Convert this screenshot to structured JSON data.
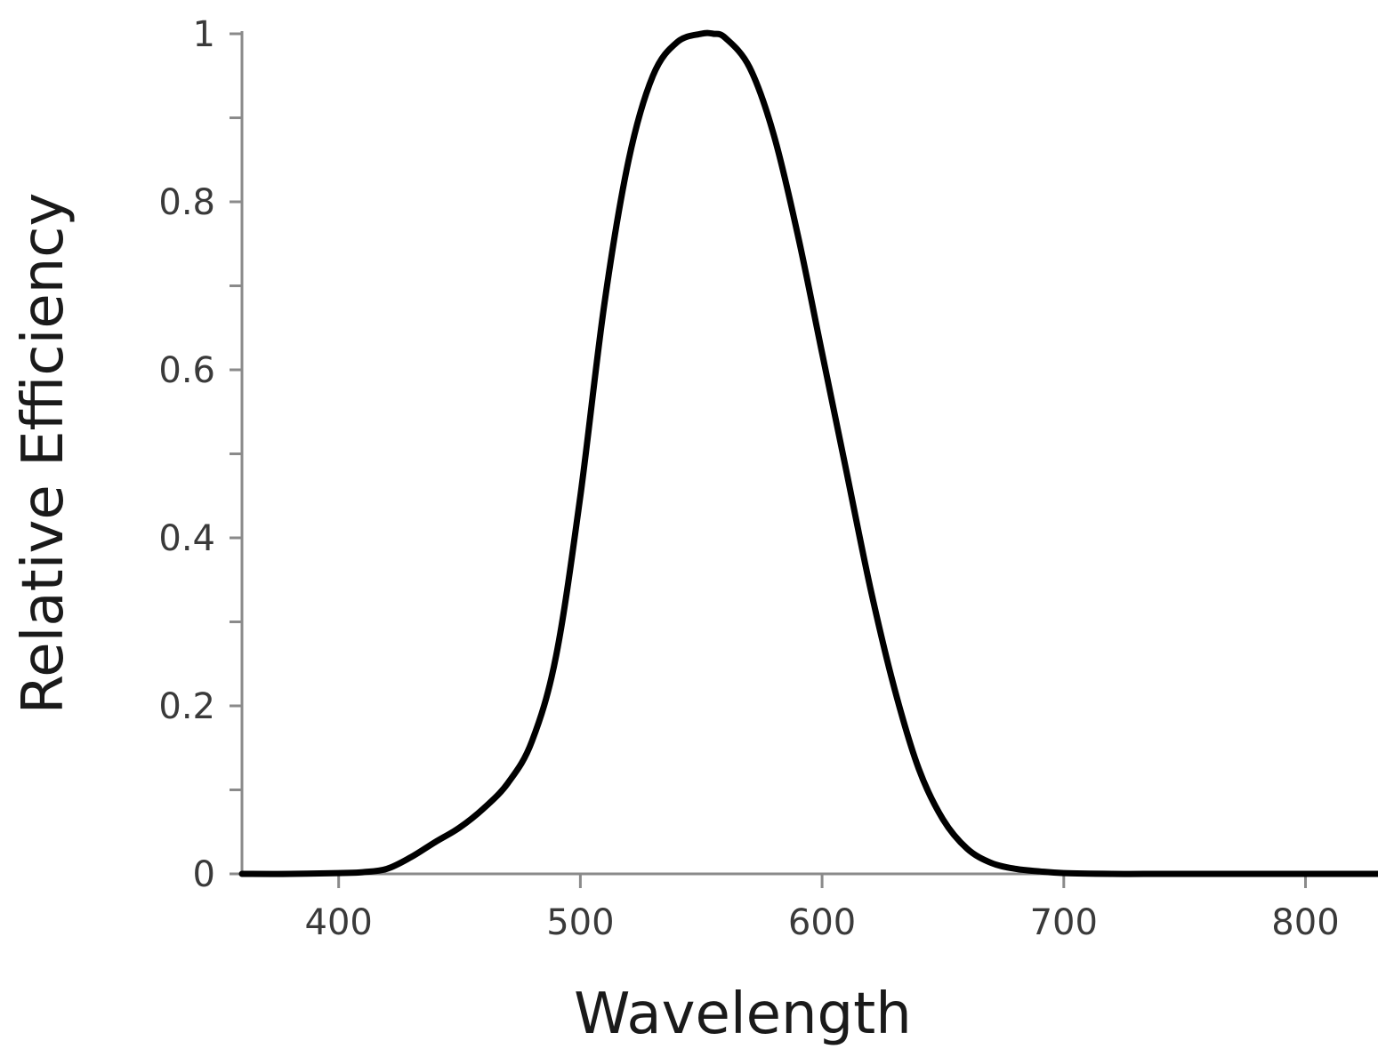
{
  "chart_data": {
    "type": "line",
    "title": "",
    "xlabel": "Wavelength",
    "ylabel": "Relative Efficiency",
    "xlim": [
      360,
      830
    ],
    "ylim": [
      0,
      1
    ],
    "x_ticks": [
      400,
      500,
      600,
      700,
      800
    ],
    "x_tick_labels": [
      "400",
      "500",
      "600",
      "700",
      "800"
    ],
    "y_ticks": [
      0,
      0.2,
      0.4,
      0.6,
      0.8,
      1
    ],
    "y_tick_labels": [
      "0",
      "0.2",
      "0.4",
      "0.6",
      "0.8",
      "1"
    ],
    "y_minor_step": 0.1,
    "grid": false,
    "legend": "none",
    "series": [
      {
        "x": [
          360,
          380,
          400,
          410,
          420,
          430,
          440,
          450,
          460,
          470,
          480,
          490,
          500,
          510,
          520,
          530,
          540,
          550,
          555,
          560,
          570,
          580,
          590,
          600,
          610,
          620,
          630,
          640,
          650,
          660,
          670,
          680,
          690,
          700,
          720,
          740,
          760,
          780,
          800,
          830
        ],
        "y": [
          0,
          0,
          0.001,
          0.002,
          0.006,
          0.02,
          0.038,
          0.055,
          0.078,
          0.108,
          0.158,
          0.26,
          0.45,
          0.68,
          0.85,
          0.95,
          0.99,
          1.0,
          1.0,
          0.995,
          0.96,
          0.88,
          0.76,
          0.62,
          0.48,
          0.34,
          0.22,
          0.125,
          0.065,
          0.03,
          0.013,
          0.006,
          0.003,
          0.001,
          0,
          0,
          0,
          0,
          0,
          0
        ],
        "color": "#000000"
      }
    ]
  }
}
